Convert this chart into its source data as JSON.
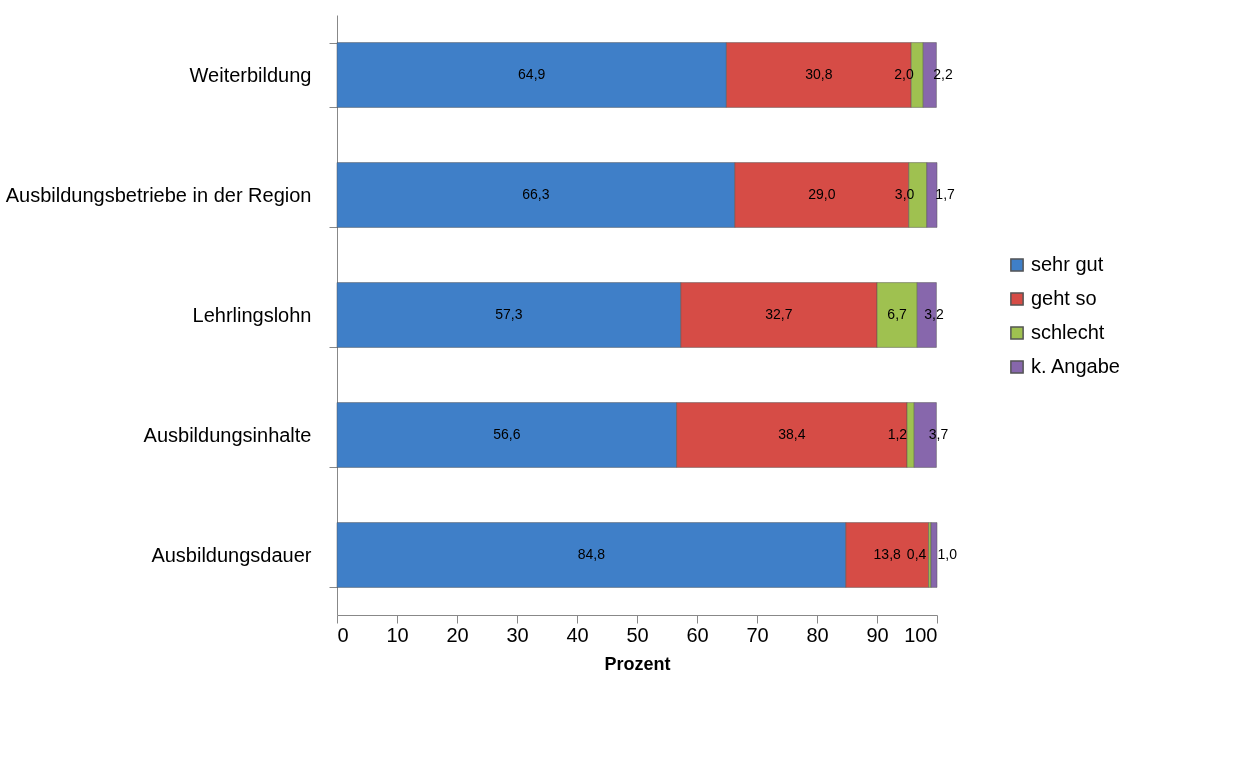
{
  "chart_data": {
    "type": "bar",
    "orientation": "horizontal",
    "stacked": true,
    "categories": [
      "Weiterbildung",
      "Ausbildungsbetriebe in der Region",
      "Lehrlingslohn",
      "Ausbildungsinhalte",
      "Ausbildungsdauer"
    ],
    "series": [
      {
        "name": "sehr gut",
        "color": "#3f7fc8",
        "values": [
          64.9,
          66.3,
          57.3,
          56.6,
          84.8
        ],
        "value_labels": [
          "64,9",
          "66,3",
          "57,3",
          "56,6",
          "84,8"
        ]
      },
      {
        "name": "geht so",
        "color": "#d64c46",
        "values": [
          30.8,
          29.0,
          32.7,
          38.4,
          13.8
        ],
        "value_labels": [
          "30,8",
          "29,0",
          "32,7",
          "38,4",
          "13,8"
        ]
      },
      {
        "name": "schlecht",
        "color": "#9fc150",
        "values": [
          2.0,
          3.0,
          6.7,
          1.2,
          0.4
        ],
        "value_labels": [
          "2,0",
          "3,0",
          "6,7",
          "1,2",
          "0,4"
        ]
      },
      {
        "name": "k. Angabe",
        "color": "#8767ac",
        "values": [
          2.2,
          1.7,
          3.2,
          3.7,
          1.0
        ],
        "value_labels": [
          "2,2",
          "1,7",
          "3,2",
          "3,7",
          "1,0"
        ]
      }
    ],
    "xlim": [
      0,
      100
    ],
    "xticks": [
      0,
      10,
      20,
      30,
      40,
      50,
      60,
      70,
      80,
      90,
      100
    ],
    "xlabel": "Prozent",
    "legend": "right",
    "grid": false
  }
}
